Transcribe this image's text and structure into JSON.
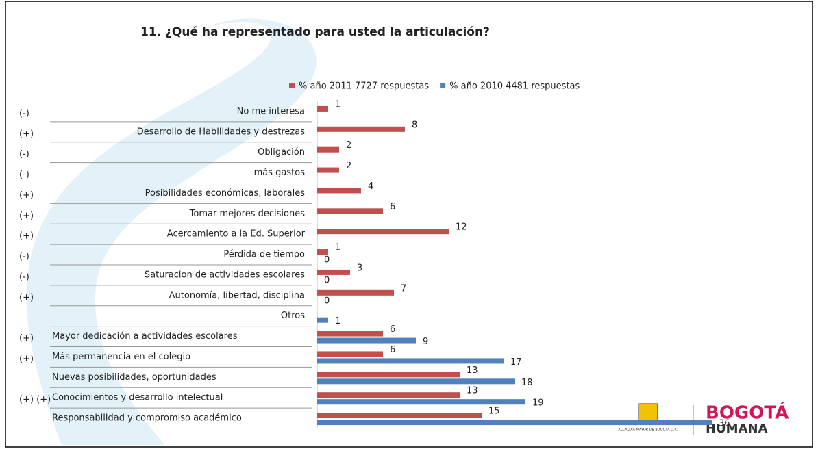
{
  "chart_data": {
    "type": "bar",
    "orientation": "horizontal",
    "title": "11. ¿Qué ha representado para usted la articulación?",
    "categories": [
      "No me interesa",
      "Desarrollo de Habilidades y destrezas",
      "Obligación",
      "más gastos",
      "Posibilidades económicas, laborales",
      "Tomar mejores decisiones",
      "Acercamiento a la Ed. Superior",
      "Pérdida de tiempo",
      "Saturacion de actividades escolares",
      "Autonomía, libertad, disciplina",
      "Otros",
      "Mayor dedicación a actividades escolares",
      "Más permanencia en el colegio",
      "Nuevas posibilidades, oportunidades",
      "Conocimientos y desarrollo intelectual",
      "Responsabilidad y compromiso académico"
    ],
    "signs": [
      "(-)",
      "(+)",
      "(-)",
      "(-)",
      "(+)",
      "(+)",
      "(+)",
      "(-)",
      "(-)",
      "(+)",
      null,
      "(+)",
      "(+)",
      null,
      "(+) (+)",
      null
    ],
    "series": [
      {
        "name": "% año 2011 7727 respuestas",
        "color": "#c0504d",
        "values": [
          1,
          8,
          2,
          2,
          4,
          6,
          12,
          1,
          3,
          7,
          null,
          6,
          6,
          13,
          13,
          15
        ]
      },
      {
        "name": "% año 2010 4481 respuestas",
        "color": "#4f81bd",
        "values": [
          null,
          null,
          null,
          null,
          null,
          null,
          null,
          0,
          0,
          0,
          1,
          9,
          17,
          18,
          19,
          36
        ]
      }
    ],
    "legend": "top-right"
  },
  "logo": {
    "entity": "ALCALDÍA MAYOR DE BOGOTÁ D.C.",
    "brand_top": "BOGOTÁ",
    "brand_bottom": "HUMANA"
  }
}
